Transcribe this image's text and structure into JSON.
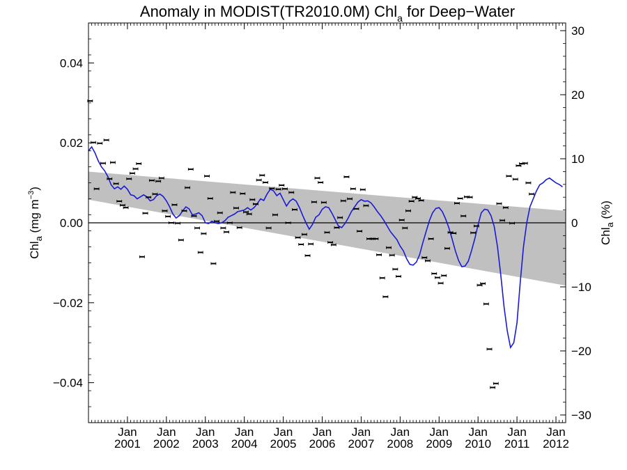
{
  "chart_data": {
    "type": "scatter",
    "title": {
      "main": "Anomaly in MODIST(TR2010.0M) Chl",
      "sub": "a",
      "suffix": " for Deep−Water"
    },
    "ylabel_left": {
      "main": "Chl",
      "sub": "a",
      "rest": " (mg m",
      "sup": "−3",
      "close": ")"
    },
    "ylabel_right": {
      "main": "Chl",
      "sub": "a",
      "rest": " (%)"
    },
    "x_range": [
      2000.0,
      2012.25
    ],
    "y_range_left": [
      -0.05,
      0.05
    ],
    "y_range_right": [
      -31.2,
      31.2
    ],
    "left_ticks": [
      {
        "value": 0.04,
        "label": "0.04"
      },
      {
        "value": 0.02,
        "label": "0.02"
      },
      {
        "value": 0.0,
        "label": "0.00"
      },
      {
        "value": -0.02,
        "label": "−0.02"
      },
      {
        "value": -0.04,
        "label": "−0.04"
      }
    ],
    "right_ticks": [
      {
        "value": 30,
        "label": "30"
      },
      {
        "value": 20,
        "label": "20"
      },
      {
        "value": 10,
        "label": "10"
      },
      {
        "value": 0,
        "label": "0"
      },
      {
        "value": -10,
        "label": "−10"
      },
      {
        "value": -20,
        "label": "−20"
      },
      {
        "value": -30,
        "label": "−30"
      }
    ],
    "x_ticks": [
      {
        "value": 2001,
        "month": "Jan",
        "year": "2001"
      },
      {
        "value": 2002,
        "month": "Jan",
        "year": "2002"
      },
      {
        "value": 2003,
        "month": "Jan",
        "year": "2003"
      },
      {
        "value": 2004,
        "month": "Jan",
        "year": "2004"
      },
      {
        "value": 2005,
        "month": "Jan",
        "year": "2005"
      },
      {
        "value": 2006,
        "month": "Jan",
        "year": "2006"
      },
      {
        "value": 2007,
        "month": "Jan",
        "year": "2007"
      },
      {
        "value": 2008,
        "month": "Jan",
        "year": "2008"
      },
      {
        "value": 2009,
        "month": "Jan",
        "year": "2009"
      },
      {
        "value": 2010,
        "month": "Jan",
        "year": "2010"
      },
      {
        "value": 2011,
        "month": "Jan",
        "year": "2011"
      },
      {
        "value": 2012,
        "month": "Jan",
        "year": "2012"
      }
    ],
    "trend_band": {
      "start": {
        "x": 2000.0,
        "upper": 0.0128,
        "lower": 0.0058
      },
      "end": {
        "x": 2012.25,
        "upper": 0.003,
        "lower": -0.0157
      }
    },
    "reference_line_y": 0.0,
    "monthly_anomaly": [
      0.0305,
      0.0201,
      0.0085,
      0.0199,
      0.0149,
      0.0207,
      0.011,
      0.0151,
      0.0098,
      0.0054,
      0.0044,
      0.0038,
      0.011,
      0.0124,
      0.0135,
      0.0148,
      -0.0085,
      0.0024,
      0.0064,
      0.0106,
      0.0072,
      0.0104,
      0.0112,
      0.003,
      0.0016,
      0.0,
      0.0045,
      -0.0001,
      -0.0043,
      0.003,
      0.0088,
      0.0134,
      0.0017,
      -0.0013,
      -0.0074,
      -0.0027,
      0.0117,
      0.0061,
      -0.0102,
      0.0004,
      0.0025,
      -0.0013,
      -0.0023,
      0.0,
      0.0076,
      0.0037,
      -0.0012,
      0.0073,
      0.0027,
      0.0022,
      0.0058,
      0.0047,
      0.0107,
      0.0119,
      0.0101,
      -0.0013,
      0.0086,
      0.002,
      0.0084,
      0.0094,
      0.0085,
      0.0,
      0.0076,
      0.0033,
      -0.0037,
      -0.0054,
      -0.0029,
      -0.0082,
      -0.0053,
      0.0052,
      0.0112,
      0.0101,
      0.0051,
      -0.0024,
      -0.0049,
      -0.0055,
      -0.0012,
      0.0013,
      0.0055,
      0.0115,
      0.006,
      0.0085,
      0.0035,
      -0.0021,
      0.0083,
      0.0043,
      -0.004,
      -0.004,
      -0.004,
      -0.008,
      -0.0138,
      -0.0185,
      -0.0062,
      -0.0081,
      -0.0116,
      -0.0134,
      0.0007,
      -0.0013,
      0.003,
      0.0054,
      0.0064,
      0.0061,
      0.0056,
      -0.0087,
      -0.0095,
      -0.004,
      -0.0127,
      -0.0137,
      -0.0151,
      -0.0132,
      -0.0064,
      -0.0024,
      -0.0026,
      0.0049,
      0.0061,
      0.0017,
      0.0065,
      0.0064,
      -0.0025,
      -0.0008,
      -0.0156,
      -0.0152,
      -0.0203,
      -0.0316,
      -0.0412,
      -0.0402,
      0.0048,
      0.0006,
      0.0038,
      0.0117,
      -0.0001,
      0.0109,
      0.0143,
      0.0148,
      0.0149,
      0.01,
      0.0072
    ],
    "smoothed": [
      [
        2000.0,
        0.018
      ],
      [
        2000.083,
        0.019
      ],
      [
        2000.167,
        0.0175
      ],
      [
        2000.25,
        0.0155
      ],
      [
        2000.333,
        0.014
      ],
      [
        2000.417,
        0.013
      ],
      [
        2000.5,
        0.0115
      ],
      [
        2000.583,
        0.0095
      ],
      [
        2000.667,
        0.0085
      ],
      [
        2000.75,
        0.009
      ],
      [
        2000.833,
        0.0084
      ],
      [
        2000.917,
        0.0092
      ],
      [
        2001.0,
        0.0084
      ],
      [
        2001.083,
        0.007
      ],
      [
        2001.167,
        0.0068
      ],
      [
        2001.25,
        0.006
      ],
      [
        2001.333,
        0.0065
      ],
      [
        2001.417,
        0.007
      ],
      [
        2001.5,
        0.0065
      ],
      [
        2001.583,
        0.0055
      ],
      [
        2001.667,
        0.0058
      ],
      [
        2001.75,
        0.0068
      ],
      [
        2001.833,
        0.0072
      ],
      [
        2001.917,
        0.0066
      ],
      [
        2002.0,
        0.0055
      ],
      [
        2002.083,
        0.004
      ],
      [
        2002.167,
        0.0022
      ],
      [
        2002.25,
        0.0012
      ],
      [
        2002.333,
        0.0018
      ],
      [
        2002.417,
        0.003
      ],
      [
        2002.5,
        0.004
      ],
      [
        2002.583,
        0.0035
      ],
      [
        2002.667,
        0.002
      ],
      [
        2002.75,
        0.0022
      ],
      [
        2002.833,
        0.0025
      ],
      [
        2002.917,
        0.0018
      ],
      [
        2003.0,
        0.0
      ],
      [
        2003.083,
        -0.0002
      ],
      [
        2003.167,
        0.0004
      ],
      [
        2003.25,
        0.0
      ],
      [
        2003.333,
        -0.0002
      ],
      [
        2003.417,
        0.0
      ],
      [
        2003.5,
        0.0005
      ],
      [
        2003.583,
        0.0014
      ],
      [
        2003.667,
        0.0018
      ],
      [
        2003.75,
        0.0022
      ],
      [
        2003.833,
        0.0028
      ],
      [
        2003.917,
        0.003
      ],
      [
        2004.0,
        0.0032
      ],
      [
        2004.083,
        0.0038
      ],
      [
        2004.167,
        0.0032
      ],
      [
        2004.25,
        0.0038
      ],
      [
        2004.333,
        0.0048
      ],
      [
        2004.417,
        0.006
      ],
      [
        2004.5,
        0.0056
      ],
      [
        2004.583,
        0.0072
      ],
      [
        2004.667,
        0.0084
      ],
      [
        2004.75,
        0.008
      ],
      [
        2004.833,
        0.0068
      ],
      [
        2004.917,
        0.0074
      ],
      [
        2005.0,
        0.0058
      ],
      [
        2005.083,
        0.0042
      ],
      [
        2005.167,
        0.0054
      ],
      [
        2005.25,
        0.006
      ],
      [
        2005.333,
        0.0054
      ],
      [
        2005.417,
        0.0038
      ],
      [
        2005.5,
        0.0018
      ],
      [
        2005.583,
        0.0
      ],
      [
        2005.667,
        -0.0016
      ],
      [
        2005.75,
        -0.0004
      ],
      [
        2005.833,
        0.0014
      ],
      [
        2005.917,
        0.002
      ],
      [
        2006.0,
        0.0034
      ],
      [
        2006.083,
        0.004
      ],
      [
        2006.167,
        0.0038
      ],
      [
        2006.25,
        0.0024
      ],
      [
        2006.333,
        0.0008
      ],
      [
        2006.417,
        -0.0008
      ],
      [
        2006.5,
        -0.0012
      ],
      [
        2006.583,
        -0.0002
      ],
      [
        2006.667,
        0.0012
      ],
      [
        2006.75,
        0.0028
      ],
      [
        2006.833,
        0.004
      ],
      [
        2006.917,
        0.0052
      ],
      [
        2007.0,
        0.0058
      ],
      [
        2007.083,
        0.0054
      ],
      [
        2007.167,
        0.0055
      ],
      [
        2007.25,
        0.005
      ],
      [
        2007.333,
        0.004
      ],
      [
        2007.417,
        0.0028
      ],
      [
        2007.5,
        0.0018
      ],
      [
        2007.583,
        0.0006
      ],
      [
        2007.667,
        -0.0008
      ],
      [
        2007.75,
        -0.0022
      ],
      [
        2007.833,
        -0.0032
      ],
      [
        2007.917,
        -0.0042
      ],
      [
        2008.0,
        -0.0058
      ],
      [
        2008.083,
        -0.007
      ],
      [
        2008.167,
        -0.009
      ],
      [
        2008.25,
        -0.0104
      ],
      [
        2008.333,
        -0.0106
      ],
      [
        2008.417,
        -0.0098
      ],
      [
        2008.5,
        -0.008
      ],
      [
        2008.583,
        -0.005
      ],
      [
        2008.667,
        -0.0022
      ],
      [
        2008.75,
        0.0005
      ],
      [
        2008.833,
        0.0025
      ],
      [
        2008.917,
        0.0036
      ],
      [
        2009.0,
        0.0038
      ],
      [
        2009.083,
        0.0028
      ],
      [
        2009.167,
        0.001
      ],
      [
        2009.25,
        -0.0012
      ],
      [
        2009.333,
        -0.004
      ],
      [
        2009.417,
        -0.007
      ],
      [
        2009.5,
        -0.0094
      ],
      [
        2009.583,
        -0.011
      ],
      [
        2009.667,
        -0.0108
      ],
      [
        2009.75,
        -0.0096
      ],
      [
        2009.833,
        -0.007
      ],
      [
        2009.917,
        -0.004
      ],
      [
        2010.0,
        -0.0005
      ],
      [
        2010.083,
        0.0025
      ],
      [
        2010.167,
        0.0034
      ],
      [
        2010.25,
        0.0032
      ],
      [
        2010.333,
        0.0018
      ],
      [
        2010.417,
        -0.001
      ],
      [
        2010.5,
        -0.006
      ],
      [
        2010.583,
        -0.013
      ],
      [
        2010.667,
        -0.021
      ],
      [
        2010.75,
        -0.027
      ],
      [
        2010.833,
        -0.0312
      ],
      [
        2010.917,
        -0.03
      ],
      [
        2011.0,
        -0.025
      ],
      [
        2011.083,
        -0.015
      ],
      [
        2011.167,
        -0.006
      ],
      [
        2011.25,
        0.0
      ],
      [
        2011.333,
        0.004
      ],
      [
        2011.417,
        0.006
      ],
      [
        2011.5,
        0.008
      ],
      [
        2011.583,
        0.0095
      ],
      [
        2011.667,
        0.01
      ],
      [
        2011.75,
        0.0108
      ],
      [
        2011.833,
        0.0112
      ],
      [
        2011.917,
        0.0106
      ],
      [
        2012.0,
        0.01
      ],
      [
        2012.083,
        0.0096
      ],
      [
        2012.167,
        0.009
      ]
    ],
    "colors": {
      "band": "#c0c0c0",
      "smoothed_line": "#1a1ad6",
      "points": "#000000",
      "axes": "#000000"
    }
  }
}
